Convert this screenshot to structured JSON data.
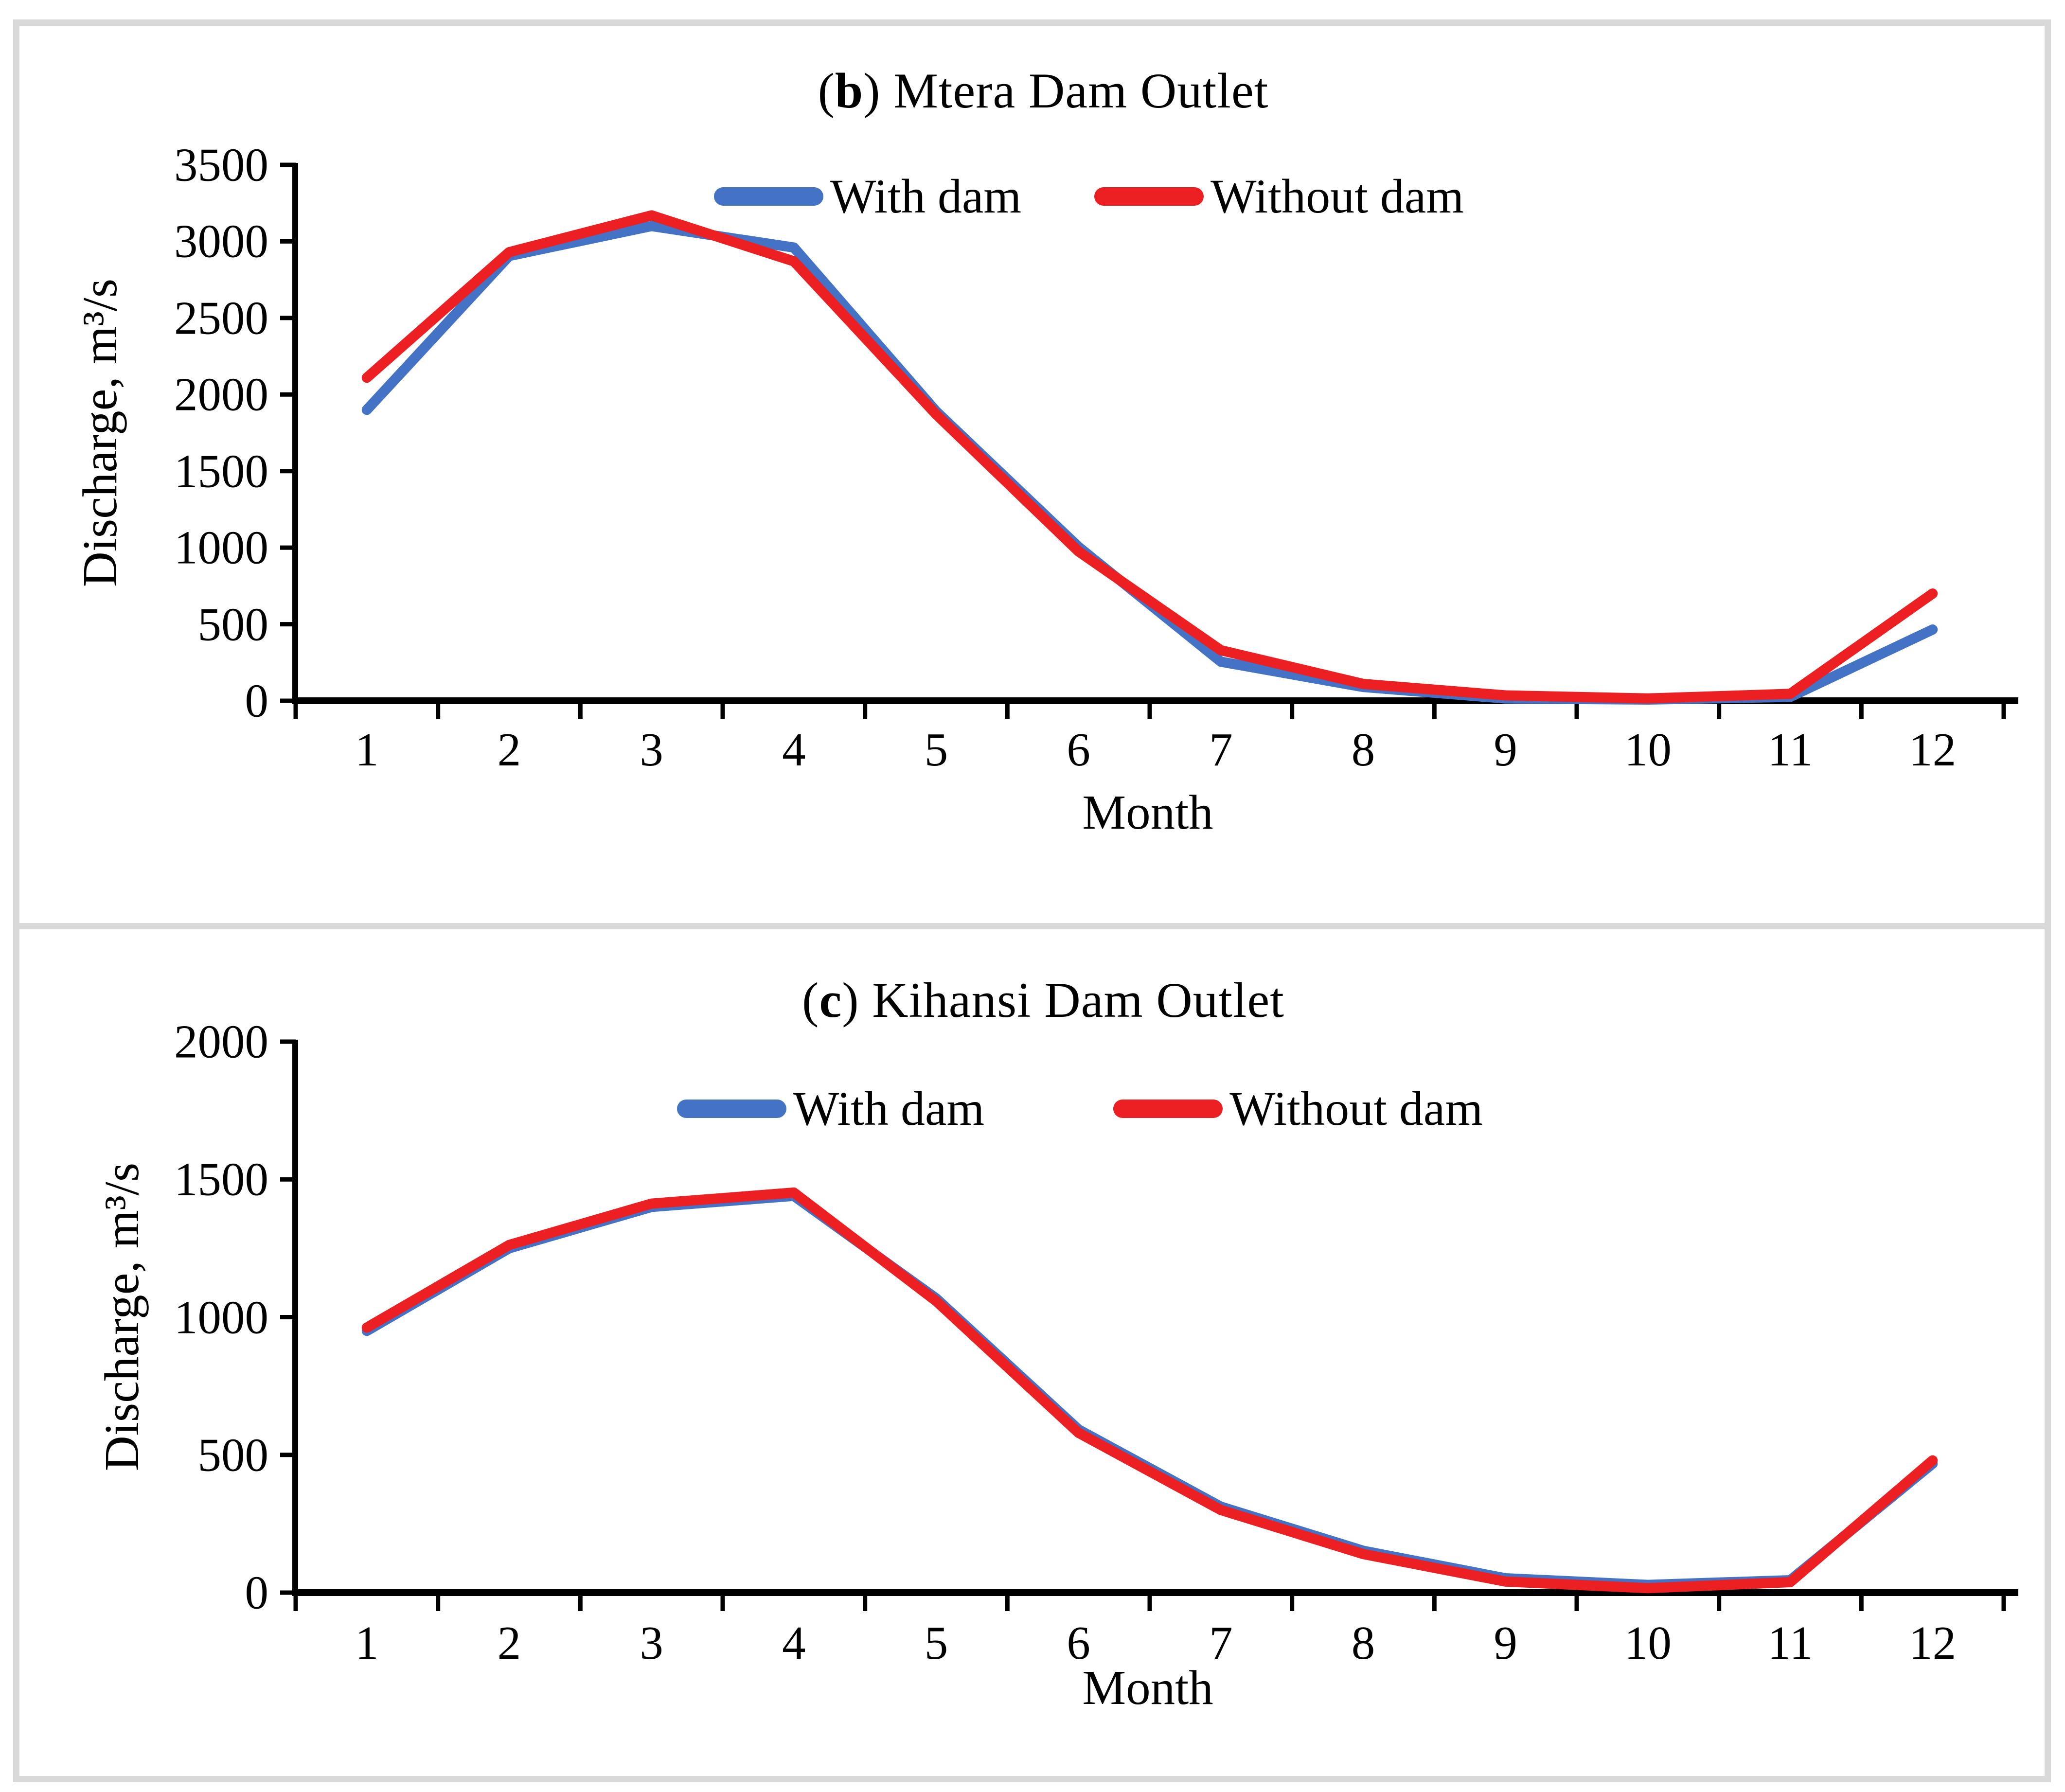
{
  "figure": {
    "background": "#ffffff",
    "frame_color": "#d9d9d9",
    "axis_color": "#000000"
  },
  "chart_data": [
    {
      "type": "line",
      "panel_label": "b",
      "title": "(b) Mtera Dam Outlet",
      "title_prefix": "(",
      "title_bold": "b",
      "title_suffix": ") Mtera Dam Outlet",
      "xlabel": "Month",
      "ylabel": "Discharge, m³/s",
      "x_categories": [
        1,
        2,
        3,
        4,
        5,
        6,
        7,
        8,
        9,
        10,
        11,
        12
      ],
      "y_ticks": [
        0,
        500,
        1000,
        1500,
        2000,
        2500,
        3000,
        3500
      ],
      "ylim": [
        0,
        3500
      ],
      "grid": false,
      "legend_position": "inside-top-center",
      "series": [
        {
          "name": "With dam",
          "color": "#4472C4",
          "values": [
            1900,
            2905,
            3100,
            2960,
            1890,
            1005,
            255,
            90,
            15,
            8,
            25,
            465
          ]
        },
        {
          "name": "Without dam",
          "color": "#EC1F23",
          "values": [
            2110,
            2930,
            3170,
            2870,
            1870,
            975,
            330,
            110,
            35,
            15,
            45,
            700
          ]
        }
      ]
    },
    {
      "type": "line",
      "panel_label": "c",
      "title": "(c) Kihansi Dam Outlet",
      "title_prefix": "(",
      "title_bold": "c",
      "title_suffix": ") Kihansi Dam Outlet",
      "xlabel": "Month",
      "ylabel": "Discharge, m³/s",
      "x_categories": [
        1,
        2,
        3,
        4,
        5,
        6,
        7,
        8,
        9,
        10,
        11,
        12
      ],
      "y_ticks": [
        0,
        500,
        1000,
        1500,
        2000
      ],
      "ylim": [
        0,
        2000
      ],
      "grid": false,
      "legend_position": "inside-top-center",
      "series": [
        {
          "name": "With dam",
          "color": "#4472C4",
          "values": [
            950,
            1250,
            1400,
            1440,
            1068,
            592,
            312,
            152,
            52,
            28,
            45,
            468
          ]
        },
        {
          "name": "Without dam",
          "color": "#EC1F23",
          "values": [
            962,
            1262,
            1412,
            1452,
            1058,
            580,
            300,
            140,
            40,
            16,
            38,
            480
          ]
        }
      ]
    }
  ]
}
